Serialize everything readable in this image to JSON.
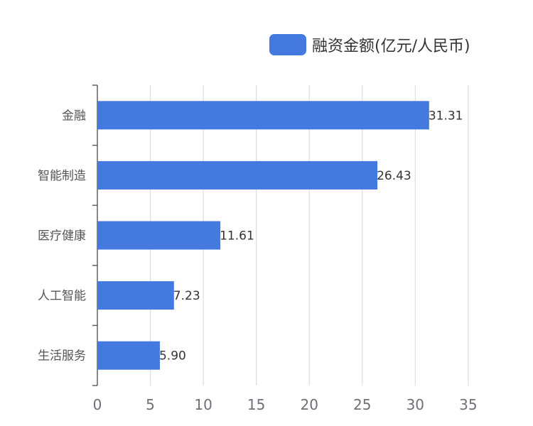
{
  "chart_data": {
    "type": "bar",
    "orientation": "horizontal",
    "categories": [
      "金融",
      "智能制造",
      "医疗健康",
      "人工智能",
      "生活服务"
    ],
    "series": [
      {
        "name": "融资金额(亿元/人民币)",
        "values": [
          31.31,
          26.43,
          11.61,
          7.23,
          5.9
        ],
        "color": "#4479e0"
      }
    ],
    "data_labels": [
      "31.31",
      "26.43",
      "11.61",
      "7.23",
      "5.90"
    ],
    "x_ticks": [
      "0",
      "5",
      "10",
      "15",
      "20",
      "25",
      "30",
      "35"
    ],
    "xlim": [
      0,
      35
    ],
    "grid": "vertical",
    "legend_position": "top-right",
    "title": "",
    "xlabel": "",
    "ylabel": ""
  }
}
